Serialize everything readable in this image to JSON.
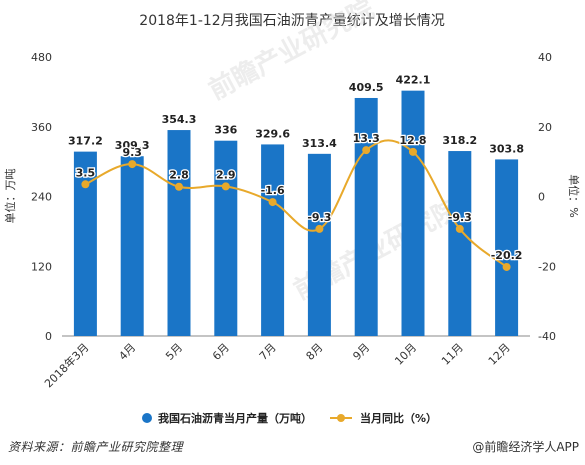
{
  "chart_data": {
    "type": "bar+line",
    "title": "2018年1-12月我国石油沥青产量统计及增长情况",
    "categories": [
      "2018年3月",
      "4月",
      "5月",
      "6月",
      "7月",
      "8月",
      "9月",
      "10月",
      "11月",
      "12月"
    ],
    "series": [
      {
        "name": "我国石油沥青当月产量（万吨）",
        "type": "bar",
        "axis": "left",
        "values": [
          317.2,
          309.3,
          354.3,
          336,
          329.6,
          313.4,
          409.5,
          422.1,
          318.2,
          303.8
        ],
        "labels": [
          "317.2",
          "309.3",
          "354.3",
          "336",
          "329.6",
          "313.4",
          "409.5",
          "422.1",
          "318.2",
          "303.8"
        ],
        "color": "#1a75c7"
      },
      {
        "name": "当月同比（%）",
        "type": "line",
        "axis": "right",
        "values": [
          3.5,
          9.3,
          2.8,
          2.9,
          -1.6,
          -9.3,
          13.3,
          12.8,
          -9.3,
          -20.2
        ],
        "labels": [
          "3.5",
          "9.3",
          "2.8",
          "2.9",
          "-1.6",
          "-9.3",
          "13.3",
          "12.8",
          "-9.3",
          "-20.2"
        ],
        "color": "#e8a92b"
      }
    ],
    "ylabel_left": "单位：万吨",
    "ylabel_right": "单位：%",
    "ylim_left": [
      0,
      480
    ],
    "yticks_left": [
      "0",
      "120",
      "240",
      "360",
      "480"
    ],
    "ylim_right": [
      -40,
      40
    ],
    "yticks_right": [
      "-40",
      "-20",
      "0",
      "20",
      "40"
    ],
    "legend_position": "bottom",
    "grid": false
  },
  "footer": {
    "source": "资料来源：前瞻产业研究院整理",
    "brand": "@前瞻经济学人APP"
  },
  "watermark": "前瞻产业研究院"
}
